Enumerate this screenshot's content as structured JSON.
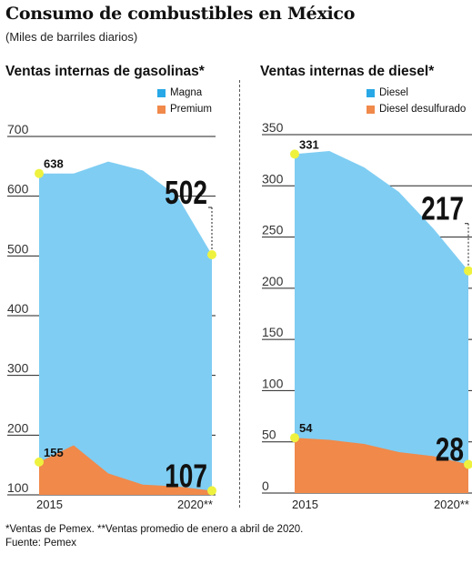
{
  "title": "Consumo de combustibles en México",
  "subtitle": "(Miles de barriles diarios)",
  "footnote": "*Ventas de Pemex. **Ventas promedio de enero a abril de 2020.",
  "source": "Fuente: Pemex",
  "colors": {
    "primary": "#7fcdf3",
    "secondary": "#f0894a",
    "marker": "#eef23e"
  },
  "chart_data": [
    {
      "type": "area",
      "title": "Ventas internas de gasolinas*",
      "x": [
        2015,
        2016,
        2017,
        2018,
        2019,
        2020
      ],
      "x_tick_labels": [
        "2015",
        "2020**"
      ],
      "ylim": [
        100,
        700
      ],
      "y_ticks": [
        100,
        200,
        300,
        400,
        500,
        600,
        700
      ],
      "series": [
        {
          "name": "Magna",
          "color": "#7fcdf3",
          "values": [
            638,
            638,
            658,
            643,
            600,
            502
          ]
        },
        {
          "name": "Premium",
          "color": "#f0894a",
          "values": [
            155,
            183,
            136,
            117,
            114,
            107
          ]
        }
      ],
      "labels": [
        {
          "text": "638",
          "value": 638,
          "position": "start"
        },
        {
          "text": "502",
          "value": 502,
          "position": "end"
        },
        {
          "text": "155",
          "value": 155,
          "position": "start"
        },
        {
          "text": "107",
          "value": 107,
          "position": "end"
        }
      ]
    },
    {
      "type": "area",
      "title": "Ventas internas de diesel*",
      "x": [
        2015,
        2016,
        2017,
        2018,
        2019,
        2020
      ],
      "x_tick_labels": [
        "2015",
        "2020**"
      ],
      "ylim": [
        0,
        350
      ],
      "y_ticks": [
        0,
        50,
        100,
        150,
        200,
        250,
        300,
        350
      ],
      "series": [
        {
          "name": "Diesel",
          "color": "#7fcdf3",
          "values": [
            331,
            334,
            318,
            294,
            258,
            217
          ]
        },
        {
          "name": "Diesel desulfurado",
          "color": "#f0894a",
          "values": [
            54,
            52,
            48,
            40,
            36,
            28
          ]
        }
      ],
      "labels": [
        {
          "text": "331",
          "value": 331,
          "position": "start"
        },
        {
          "text": "217",
          "value": 217,
          "position": "end"
        },
        {
          "text": "54",
          "value": 54,
          "position": "start"
        },
        {
          "text": "28",
          "value": 28,
          "position": "end"
        }
      ]
    }
  ]
}
